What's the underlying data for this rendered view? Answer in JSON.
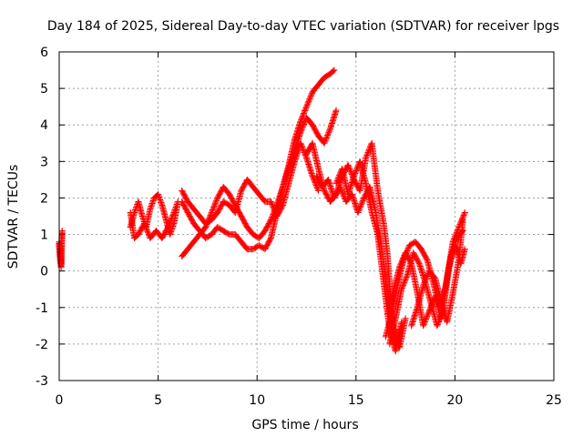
{
  "chart_data": {
    "type": "scatter",
    "title": "Day 184 of 2025, Sidereal Day-to-day VTEC variation (SDTVAR) for receiver lpgs",
    "xlabel": "GPS time / hours",
    "ylabel": "SDTVAR / TECUs",
    "xlim": [
      0,
      25
    ],
    "ylim": [
      -3,
      6
    ],
    "xticks": [
      0,
      5,
      10,
      15,
      20,
      25
    ],
    "yticks": [
      -3,
      -2,
      -1,
      0,
      1,
      2,
      3,
      4,
      5,
      6
    ],
    "grid": true,
    "marker": "plus",
    "color": "#ff0000",
    "series": [
      {
        "x": [
          0.0,
          0.05,
          0.1,
          0.1,
          0.15,
          0.1,
          0.05,
          0.0
        ],
        "y": [
          0.8,
          0.3,
          0.1,
          0.6,
          1.1,
          0.2,
          0.4,
          0.75
        ]
      },
      {
        "x": [
          3.6,
          3.8,
          4.0,
          4.2,
          4.4,
          4.6,
          4.8,
          5.0,
          5.2,
          5.4,
          5.6,
          5.8,
          6.0,
          5.8,
          5.5,
          5.2,
          4.9,
          4.6,
          4.3,
          4.0,
          3.8,
          3.6
        ],
        "y": [
          1.2,
          1.6,
          1.9,
          1.5,
          1.2,
          1.7,
          2.0,
          2.1,
          1.8,
          1.4,
          1.0,
          1.3,
          1.9,
          1.6,
          1.2,
          0.9,
          1.1,
          0.9,
          1.3,
          1.0,
          0.9,
          1.6
        ]
      },
      {
        "x": [
          6.2,
          6.5,
          6.8,
          7.1,
          7.4,
          7.7,
          8.0,
          8.3,
          8.6,
          8.9,
          9.2,
          9.5,
          9.8,
          10.1,
          10.4,
          10.7,
          11.0,
          11.3,
          11.6,
          11.9,
          12.2,
          12.5,
          12.8,
          13.1,
          13.4,
          13.7,
          13.9
        ],
        "y": [
          1.9,
          1.6,
          1.3,
          1.1,
          0.9,
          1.0,
          1.2,
          1.1,
          1.0,
          1.0,
          0.8,
          0.6,
          0.6,
          0.7,
          0.6,
          0.9,
          1.6,
          2.3,
          2.9,
          3.6,
          4.1,
          4.5,
          4.9,
          5.1,
          5.3,
          5.4,
          5.5
        ]
      },
      {
        "x": [
          6.2,
          6.5,
          6.8,
          7.1,
          7.4,
          7.7,
          8.0,
          8.3,
          8.6,
          8.9,
          9.2,
          9.5,
          9.8,
          10.1,
          10.4,
          10.7,
          11.0,
          11.3,
          11.6,
          11.9,
          12.2,
          12.5,
          12.8,
          13.1,
          13.4,
          13.7,
          14.0
        ],
        "y": [
          0.4,
          0.6,
          0.8,
          1.0,
          1.2,
          1.6,
          2.0,
          2.3,
          2.1,
          1.8,
          1.5,
          1.2,
          1.0,
          0.9,
          1.1,
          1.4,
          1.8,
          2.3,
          2.8,
          3.3,
          3.8,
          4.2,
          4.0,
          3.7,
          3.5,
          3.9,
          4.4
        ]
      },
      {
        "x": [
          6.2,
          6.5,
          6.8,
          7.1,
          7.4,
          7.7,
          8.0,
          8.3,
          8.6,
          8.9,
          9.2,
          9.5,
          9.8,
          10.1,
          10.4,
          10.7,
          11.0,
          11.3,
          11.6,
          11.9,
          12.2,
          12.5,
          12.8,
          13.1
        ],
        "y": [
          2.2,
          1.9,
          1.7,
          1.5,
          1.3,
          1.4,
          1.6,
          1.9,
          1.8,
          1.6,
          2.2,
          2.5,
          2.3,
          2.1,
          1.9,
          1.9,
          1.5,
          1.8,
          2.4,
          3.0,
          3.5,
          3.1,
          2.6,
          2.2
        ]
      },
      {
        "x": [
          12.5,
          12.8,
          13.1,
          13.4,
          13.7,
          14.0,
          14.3,
          14.6,
          14.9,
          15.2,
          15.5,
          15.8,
          16.1,
          16.4,
          16.6,
          16.8,
          17.0,
          17.2
        ],
        "y": [
          3.2,
          3.5,
          2.8,
          2.2,
          1.9,
          2.1,
          2.6,
          2.9,
          2.5,
          2.2,
          3.1,
          3.5,
          2.2,
          1.3,
          0.4,
          -1.2,
          -2.0,
          -1.6
        ]
      },
      {
        "x": [
          13.0,
          13.3,
          13.6,
          13.9,
          14.2,
          14.5,
          14.8,
          15.1,
          15.4,
          15.7,
          16.0,
          16.3,
          16.6,
          16.9,
          17.2,
          17.5
        ],
        "y": [
          2.6,
          2.3,
          2.5,
          2.0,
          2.3,
          1.9,
          2.1,
          1.6,
          2.0,
          2.3,
          1.6,
          0.6,
          -0.6,
          -1.6,
          -2.1,
          -1.3
        ]
      },
      {
        "x": [
          14.0,
          14.3,
          14.6,
          14.9,
          15.2,
          15.5,
          15.8,
          16.1,
          16.4,
          16.7,
          17.0,
          17.3
        ],
        "y": [
          2.4,
          2.8,
          2.1,
          2.6,
          3.0,
          2.4,
          1.6,
          1.0,
          -0.3,
          -1.6,
          -2.2,
          -1.4
        ]
      },
      {
        "x": [
          16.5,
          16.8,
          17.1,
          17.4,
          17.7,
          18.0,
          18.3,
          18.6,
          18.9,
          19.2,
          19.5,
          19.8,
          20.1,
          20.4
        ],
        "y": [
          -1.8,
          -1.2,
          -0.4,
          0.3,
          0.7,
          0.8,
          0.6,
          0.3,
          -0.3,
          -1.0,
          -0.5,
          0.4,
          0.9,
          1.1
        ]
      },
      {
        "x": [
          16.6,
          16.9,
          17.2,
          17.5,
          17.8,
          18.1,
          18.4,
          18.7,
          19.0,
          19.3,
          19.6,
          19.9,
          20.2,
          20.5
        ],
        "y": [
          -1.2,
          -0.5,
          0.1,
          0.5,
          0.2,
          -0.6,
          -1.5,
          -1.1,
          -0.7,
          -1.3,
          -0.2,
          0.8,
          1.2,
          1.6
        ]
      },
      {
        "x": [
          16.7,
          17.0,
          17.3,
          17.6,
          17.9,
          18.2,
          18.5,
          18.8,
          19.1,
          19.4,
          19.7,
          20.0,
          20.3,
          20.5
        ],
        "y": [
          -2.0,
          -1.3,
          -0.5,
          -0.1,
          0.5,
          0.2,
          -0.3,
          -0.9,
          -1.5,
          -1.1,
          0.1,
          0.7,
          0.2,
          0.6
        ]
      },
      {
        "x": [
          17.8,
          18.1,
          18.4,
          18.7,
          19.0,
          19.3,
          19.6,
          19.9,
          20.2,
          20.4
        ],
        "y": [
          -1.5,
          -1.0,
          -0.4,
          0.0,
          -0.2,
          -0.8,
          -1.4,
          -0.6,
          0.3,
          1.4
        ]
      }
    ]
  }
}
